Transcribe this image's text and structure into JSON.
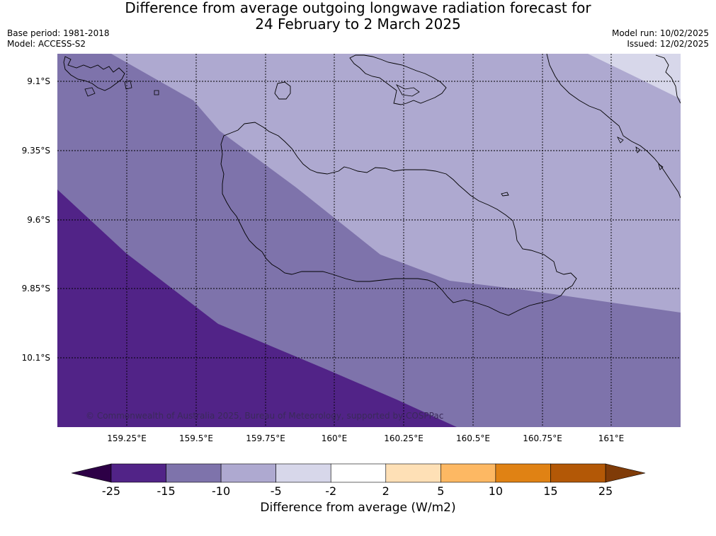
{
  "title": {
    "line1": "Difference from average outgoing longwave radiation forecast for",
    "line2": "24 February to 2 March 2025"
  },
  "meta": {
    "base_period": "Base period: 1981-2018",
    "model": "Model: ACCESS-S2",
    "model_run": "Model run: 10/02/2025",
    "issued": "Issued: 12/02/2025"
  },
  "map": {
    "copyright": "© Commonwealth of Australia 2025, Bureau of Meteorology, supported by COSPPac",
    "lon_labels": [
      "159.25°E",
      "159.5°E",
      "159.75°E",
      "160°E",
      "160.25°E",
      "160.5°E",
      "160.75°E",
      "161°E"
    ],
    "lat_labels": [
      "9.1°S",
      "9.35°S",
      "9.6°S",
      "9.85°S",
      "10.1°S"
    ],
    "fill_colors": {
      "band_lt_-15": "#512387",
      "band_-15_-10": "#7e73ab",
      "band_-10_-5": "#aea9d0",
      "band_-5_-2": "#d7d7ea"
    }
  },
  "colorbar": {
    "title": "Difference from average (W/m2)",
    "tick_labels": [
      "-25",
      "-15",
      "-10",
      "-5",
      "-2",
      "2",
      "5",
      "10",
      "15",
      "25"
    ],
    "colors": [
      "#512387",
      "#7e73ab",
      "#aea9d0",
      "#d7d7ea",
      "#ffffff",
      "#fee0b6",
      "#fdb863",
      "#e08214",
      "#b35806"
    ],
    "extend_low_color": "#2d0046",
    "extend_high_color": "#7f3b08"
  }
}
